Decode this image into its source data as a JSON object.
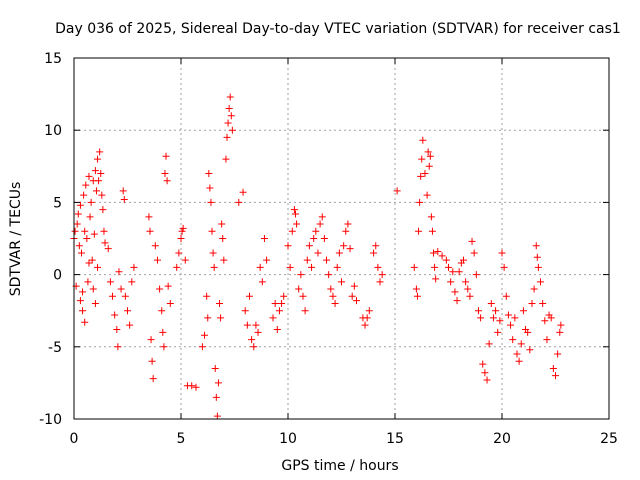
{
  "chart_data": {
    "type": "scatter",
    "title": "Day 036 of 2025, Sidereal Day-to-day VTEC variation (SDTVAR) for receiver cas1",
    "xlabel": "GPS time / hours",
    "ylabel": "SDTVAR / TECUs",
    "xlim": [
      0,
      25
    ],
    "ylim": [
      -10,
      15
    ],
    "xticks": [
      0,
      5,
      10,
      15,
      20,
      25
    ],
    "yticks": [
      -10,
      -5,
      0,
      5,
      10,
      15
    ],
    "xtick_labels": [
      "0",
      "5",
      "10",
      "15",
      "20",
      "25"
    ],
    "ytick_labels": [
      "-10",
      "-5",
      "0",
      "5",
      "10",
      "15"
    ],
    "grid": true,
    "marker": "+",
    "color": "#ff0000",
    "series": [
      {
        "name": "SDTVAR",
        "points": [
          [
            0.0,
            2.5
          ],
          [
            0.05,
            3.0
          ],
          [
            0.1,
            -0.8
          ],
          [
            0.15,
            3.5
          ],
          [
            0.2,
            4.2
          ],
          [
            0.25,
            2.0
          ],
          [
            0.3,
            4.8
          ],
          [
            0.35,
            1.5
          ],
          [
            0.4,
            -1.2
          ],
          [
            0.45,
            5.5
          ],
          [
            0.5,
            3.0
          ],
          [
            0.55,
            6.2
          ],
          [
            0.6,
            2.5
          ],
          [
            0.65,
            -0.5
          ],
          [
            0.7,
            6.8
          ],
          [
            0.75,
            4.0
          ],
          [
            0.8,
            5.0
          ],
          [
            0.85,
            1.0
          ],
          [
            0.9,
            6.5
          ],
          [
            0.95,
            2.8
          ],
          [
            1.0,
            7.2
          ],
          [
            1.05,
            5.8
          ],
          [
            1.1,
            8.0
          ],
          [
            1.15,
            6.5
          ],
          [
            1.2,
            8.5
          ],
          [
            1.25,
            7.0
          ],
          [
            1.3,
            5.5
          ],
          [
            1.35,
            4.5
          ],
          [
            1.4,
            3.0
          ],
          [
            1.45,
            2.2
          ],
          [
            0.3,
            -1.8
          ],
          [
            0.4,
            -2.5
          ],
          [
            0.5,
            -3.3
          ],
          [
            0.7,
            0.8
          ],
          [
            0.9,
            -1.0
          ],
          [
            1.0,
            -2.0
          ],
          [
            1.1,
            0.5
          ],
          [
            1.6,
            1.8
          ],
          [
            1.7,
            -0.5
          ],
          [
            1.8,
            -1.5
          ],
          [
            1.9,
            -2.8
          ],
          [
            2.0,
            -3.8
          ],
          [
            2.05,
            -5.0
          ],
          [
            2.1,
            0.2
          ],
          [
            2.2,
            -1.0
          ],
          [
            2.3,
            5.8
          ],
          [
            2.35,
            5.2
          ],
          [
            2.4,
            -1.5
          ],
          [
            2.5,
            -2.5
          ],
          [
            2.6,
            -3.5
          ],
          [
            2.7,
            -0.5
          ],
          [
            2.8,
            0.5
          ],
          [
            3.5,
            4.0
          ],
          [
            3.55,
            3.0
          ],
          [
            3.6,
            -4.5
          ],
          [
            3.65,
            -6.0
          ],
          [
            3.7,
            -7.2
          ],
          [
            3.8,
            2.0
          ],
          [
            3.9,
            1.0
          ],
          [
            4.0,
            -1.0
          ],
          [
            4.1,
            -2.5
          ],
          [
            4.15,
            -4.0
          ],
          [
            4.2,
            -5.0
          ],
          [
            4.25,
            7.0
          ],
          [
            4.3,
            8.2
          ],
          [
            4.35,
            6.5
          ],
          [
            4.4,
            -0.8
          ],
          [
            4.5,
            -2.0
          ],
          [
            4.8,
            0.5
          ],
          [
            4.9,
            1.5
          ],
          [
            5.0,
            2.5
          ],
          [
            5.05,
            3.0
          ],
          [
            5.1,
            3.2
          ],
          [
            5.2,
            1.0
          ],
          [
            5.3,
            -7.7
          ],
          [
            5.5,
            -7.7
          ],
          [
            5.7,
            -7.8
          ],
          [
            6.0,
            -5.0
          ],
          [
            6.1,
            -4.2
          ],
          [
            6.2,
            -1.5
          ],
          [
            6.25,
            -3.0
          ],
          [
            6.3,
            7.0
          ],
          [
            6.35,
            6.0
          ],
          [
            6.4,
            5.0
          ],
          [
            6.45,
            3.0
          ],
          [
            6.5,
            1.5
          ],
          [
            6.55,
            0.5
          ],
          [
            6.6,
            -6.5
          ],
          [
            6.65,
            -8.5
          ],
          [
            6.7,
            -9.8
          ],
          [
            6.75,
            -7.5
          ],
          [
            6.8,
            -2.0
          ],
          [
            6.85,
            -3.0
          ],
          [
            6.9,
            3.5
          ],
          [
            6.95,
            2.5
          ],
          [
            7.0,
            1.0
          ],
          [
            7.1,
            8.0
          ],
          [
            7.15,
            9.5
          ],
          [
            7.2,
            10.5
          ],
          [
            7.25,
            11.5
          ],
          [
            7.3,
            12.3
          ],
          [
            7.35,
            11.0
          ],
          [
            7.4,
            10.0
          ],
          [
            7.7,
            5.0
          ],
          [
            7.9,
            5.7
          ],
          [
            8.0,
            -2.5
          ],
          [
            8.1,
            -3.5
          ],
          [
            8.2,
            -1.5
          ],
          [
            8.3,
            -4.5
          ],
          [
            8.4,
            -5.0
          ],
          [
            8.5,
            -3.5
          ],
          [
            8.6,
            -4.0
          ],
          [
            8.7,
            0.5
          ],
          [
            8.8,
            -0.5
          ],
          [
            8.9,
            2.5
          ],
          [
            9.0,
            1.0
          ],
          [
            9.3,
            -3.0
          ],
          [
            9.4,
            -2.0
          ],
          [
            9.5,
            -3.8
          ],
          [
            9.6,
            -2.5
          ],
          [
            9.7,
            -2.0
          ],
          [
            9.8,
            -1.5
          ],
          [
            10.0,
            2.0
          ],
          [
            10.1,
            0.5
          ],
          [
            10.2,
            3.0
          ],
          [
            10.3,
            4.5
          ],
          [
            10.35,
            4.2
          ],
          [
            10.4,
            3.5
          ],
          [
            10.5,
            -1.0
          ],
          [
            10.6,
            0.0
          ],
          [
            10.7,
            -1.5
          ],
          [
            10.8,
            -2.5
          ],
          [
            10.9,
            1.0
          ],
          [
            11.0,
            2.0
          ],
          [
            11.1,
            0.5
          ],
          [
            11.2,
            2.5
          ],
          [
            11.3,
            3.0
          ],
          [
            11.4,
            1.5
          ],
          [
            11.5,
            3.5
          ],
          [
            11.6,
            4.0
          ],
          [
            11.7,
            2.5
          ],
          [
            11.8,
            1.0
          ],
          [
            11.9,
            0.0
          ],
          [
            12.0,
            -1.0
          ],
          [
            12.1,
            -1.5
          ],
          [
            12.2,
            -2.0
          ],
          [
            12.3,
            0.5
          ],
          [
            12.4,
            1.5
          ],
          [
            12.5,
            -0.5
          ],
          [
            12.6,
            2.0
          ],
          [
            12.7,
            3.0
          ],
          [
            12.8,
            3.5
          ],
          [
            12.9,
            1.8
          ],
          [
            13.0,
            -1.5
          ],
          [
            13.1,
            -0.8
          ],
          [
            13.2,
            -1.8
          ],
          [
            13.5,
            -3.0
          ],
          [
            13.6,
            -3.5
          ],
          [
            13.7,
            -3.0
          ],
          [
            13.8,
            -2.5
          ],
          [
            14.0,
            1.5
          ],
          [
            14.1,
            2.0
          ],
          [
            14.2,
            0.5
          ],
          [
            14.3,
            -0.5
          ],
          [
            14.4,
            0.0
          ],
          [
            15.1,
            5.8
          ],
          [
            15.9,
            0.5
          ],
          [
            16.0,
            -1.0
          ],
          [
            16.05,
            -1.5
          ],
          [
            16.1,
            3.0
          ],
          [
            16.15,
            5.0
          ],
          [
            16.2,
            6.8
          ],
          [
            16.25,
            8.0
          ],
          [
            16.3,
            9.3
          ],
          [
            16.4,
            7.0
          ],
          [
            16.5,
            5.5
          ],
          [
            16.55,
            8.5
          ],
          [
            16.6,
            7.5
          ],
          [
            16.65,
            8.2
          ],
          [
            16.7,
            4.0
          ],
          [
            16.75,
            3.0
          ],
          [
            16.8,
            1.5
          ],
          [
            16.85,
            0.5
          ],
          [
            16.9,
            -0.3
          ],
          [
            17.0,
            1.6
          ],
          [
            17.2,
            1.3
          ],
          [
            17.4,
            1.0
          ],
          [
            17.5,
            0.5
          ],
          [
            17.6,
            -0.5
          ],
          [
            17.7,
            0.2
          ],
          [
            17.8,
            -1.2
          ],
          [
            17.9,
            -1.8
          ],
          [
            18.0,
            0.2
          ],
          [
            18.1,
            0.8
          ],
          [
            18.2,
            1.0
          ],
          [
            18.3,
            -0.5
          ],
          [
            18.4,
            -1.0
          ],
          [
            18.5,
            -1.5
          ],
          [
            18.6,
            2.3
          ],
          [
            18.7,
            1.5
          ],
          [
            18.8,
            0.0
          ],
          [
            18.9,
            -2.5
          ],
          [
            19.0,
            -3.0
          ],
          [
            19.1,
            -6.2
          ],
          [
            19.2,
            -6.8
          ],
          [
            19.3,
            -7.3
          ],
          [
            19.4,
            -4.8
          ],
          [
            19.5,
            -2.0
          ],
          [
            19.6,
            -3.0
          ],
          [
            19.7,
            -2.5
          ],
          [
            19.8,
            -4.0
          ],
          [
            19.9,
            -3.2
          ],
          [
            20.0,
            1.5
          ],
          [
            20.1,
            0.5
          ],
          [
            20.2,
            -1.5
          ],
          [
            20.3,
            -2.8
          ],
          [
            20.4,
            -3.5
          ],
          [
            20.5,
            -4.5
          ],
          [
            20.6,
            -3.0
          ],
          [
            20.7,
            -5.5
          ],
          [
            20.8,
            -6.0
          ],
          [
            20.9,
            -4.8
          ],
          [
            21.0,
            -2.5
          ],
          [
            21.1,
            -3.8
          ],
          [
            21.2,
            -4.0
          ],
          [
            21.3,
            -5.2
          ],
          [
            21.4,
            -2.0
          ],
          [
            21.5,
            -1.0
          ],
          [
            21.6,
            2.0
          ],
          [
            21.65,
            1.2
          ],
          [
            21.7,
            0.5
          ],
          [
            21.8,
            -0.5
          ],
          [
            21.9,
            -2.0
          ],
          [
            22.0,
            -3.2
          ],
          [
            22.1,
            -4.5
          ],
          [
            22.2,
            -2.8
          ],
          [
            22.3,
            -3.0
          ],
          [
            22.4,
            -6.5
          ],
          [
            22.5,
            -7.0
          ],
          [
            22.6,
            -5.5
          ],
          [
            22.7,
            -4.0
          ],
          [
            22.75,
            -3.5
          ]
        ]
      }
    ]
  }
}
